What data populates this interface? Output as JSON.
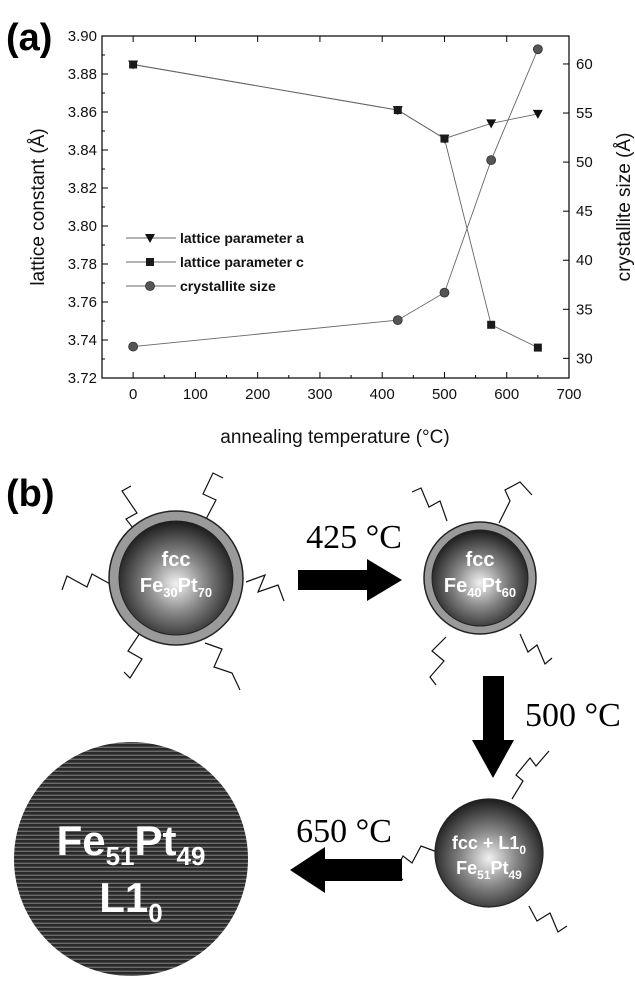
{
  "panel_a_label": "(a)",
  "panel_b_label": "(b)",
  "chart_data": {
    "type": "line",
    "xlabel": "annealing temperature (°C)",
    "ylabel_left": "lattice constant (Å)",
    "ylabel_right": "crystallite size (Å)",
    "xlim": [
      -50,
      700
    ],
    "ylim_left": [
      3.72,
      3.9
    ],
    "ylim_right": [
      28,
      62.85
    ],
    "x_ticks": [
      0,
      100,
      200,
      300,
      400,
      500,
      600,
      700
    ],
    "y_left_ticks": [
      "3.72",
      "3.74",
      "3.76",
      "3.78",
      "3.80",
      "3.82",
      "3.84",
      "3.86",
      "3.88",
      "3.90"
    ],
    "y_right_ticks": [
      30,
      35,
      40,
      45,
      50,
      55,
      60
    ],
    "legend_position": "center-left",
    "series": [
      {
        "name": "lattice parameter a",
        "marker": "triangle-down",
        "axis": "left",
        "x": [
          0,
          425,
          500,
          575,
          650
        ],
        "y": [
          3.885,
          3.861,
          3.846,
          3.854,
          3.859
        ]
      },
      {
        "name": "lattice parameter c",
        "marker": "square",
        "axis": "left",
        "x": [
          0,
          425,
          500,
          575,
          650
        ],
        "y": [
          3.885,
          3.861,
          3.846,
          3.748,
          3.736
        ]
      },
      {
        "name": "crystallite size",
        "marker": "circle",
        "axis": "right",
        "x": [
          0,
          425,
          500,
          575,
          650
        ],
        "y": [
          31.2,
          33.9,
          36.7,
          50.2,
          61.5
        ]
      }
    ]
  },
  "diagram": {
    "step1_label": "425 °C",
    "step2_label": "500 °C",
    "step3_label": "650 °C",
    "particle1": {
      "phase": "fcc",
      "el1": "Fe",
      "sub1": "30",
      "el2": "Pt",
      "sub2": "70"
    },
    "particle2": {
      "phase": "fcc",
      "el1": "Fe",
      "sub1": "40",
      "el2": "Pt",
      "sub2": "60"
    },
    "particle3": {
      "phase_pre": "fcc + L1",
      "phase_sub": "0",
      "el1": "Fe",
      "sub1": "51",
      "el2": "Pt",
      "sub2": "49"
    },
    "particle4": {
      "el1": "Fe",
      "sub1": "51",
      "el2": "Pt",
      "sub2": "49",
      "phase_pre": "L1",
      "phase_sub": "0"
    }
  }
}
